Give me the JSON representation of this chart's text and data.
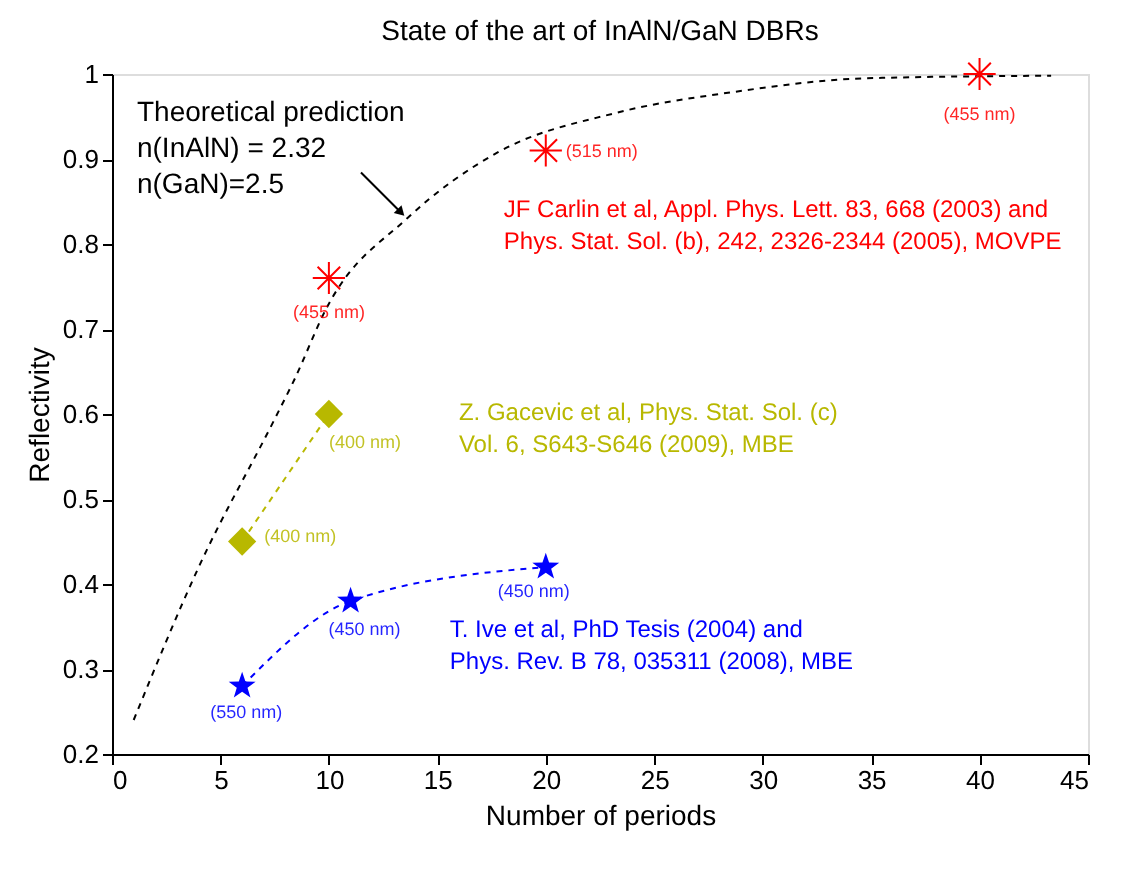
{
  "chart_data": {
    "type": "line",
    "title": "State of the art of InAlN/GaN DBRs",
    "xlabel": "Number of periods",
    "ylabel": "Reflectivity",
    "xlim": [
      0,
      45
    ],
    "xticks": [
      0,
      5,
      10,
      15,
      20,
      25,
      30,
      35,
      40,
      45
    ],
    "ylim": [
      0.2,
      1
    ],
    "yticks": [
      0.2,
      0.3,
      0.4,
      0.5,
      0.6,
      0.7,
      0.8,
      0.9,
      1
    ],
    "grid": false,
    "legend": false,
    "series": [
      {
        "name": "Theoretical prediction\nn(InAlN) = 2.32\nn(GaN)=2.5",
        "color": "#000000",
        "marker": "none",
        "line_style": "dashed",
        "x": [
          1,
          4,
          7.5,
          8.4,
          9.9,
          13.6,
          17.8,
          23.2,
          28.7,
          34.8,
          43.3
        ],
        "values": [
          0.24,
          0.42,
          0.594,
          0.64,
          0.725,
          0.83,
          0.908,
          0.954,
          0.979,
          0.995,
          0.998
        ]
      },
      {
        "name": "JF Carlin et al, Appl. Phys. Lett. 83, 668 (2003) and\nPhys. Stat. Sol. (b), 242, 2326-2344 (2005), MOVPE",
        "type": "scatter",
        "color": "#ff0000",
        "marker": "cross",
        "x": [
          10,
          20,
          40
        ],
        "values": [
          0.76,
          0.91,
          1.0
        ]
      },
      {
        "name": "Z. Gacevic et al, Phys. Stat. Sol. (c)\nVol. 6, S643-S646 (2009), MBE",
        "color": "#b8b800",
        "marker": "diamond",
        "line_style": "dashed",
        "x": [
          6,
          10
        ],
        "values": [
          0.45,
          0.6
        ]
      },
      {
        "name": "T. Ive et al, PhD Tesis (2004) and\nPhys. Rev. B 78, 035311 (2008), MBE",
        "color": "#0000ff",
        "marker": "star",
        "line_style": "dashed",
        "x": [
          6,
          11,
          20
        ],
        "values": [
          0.28,
          0.38,
          0.42
        ]
      }
    ],
    "annotations": [
      {
        "text": "(455 nm)",
        "x": 10,
        "y": 0.76
      },
      {
        "text": "(515 nm)",
        "x": 20,
        "y": 0.91
      },
      {
        "text": "(455 nm)",
        "x": 40,
        "y": 1.0
      },
      {
        "text": "(400 nm)",
        "x": 10,
        "y": 0.6
      },
      {
        "text": "(400 nm)",
        "x": 6,
        "y": 0.45
      },
      {
        "text": "(450 nm)",
        "x": 20,
        "y": 0.42
      },
      {
        "text": "(450 nm)",
        "x": 11,
        "y": 0.38
      },
      {
        "text": "(550 nm)",
        "x": 6,
        "y": 0.28
      }
    ]
  }
}
